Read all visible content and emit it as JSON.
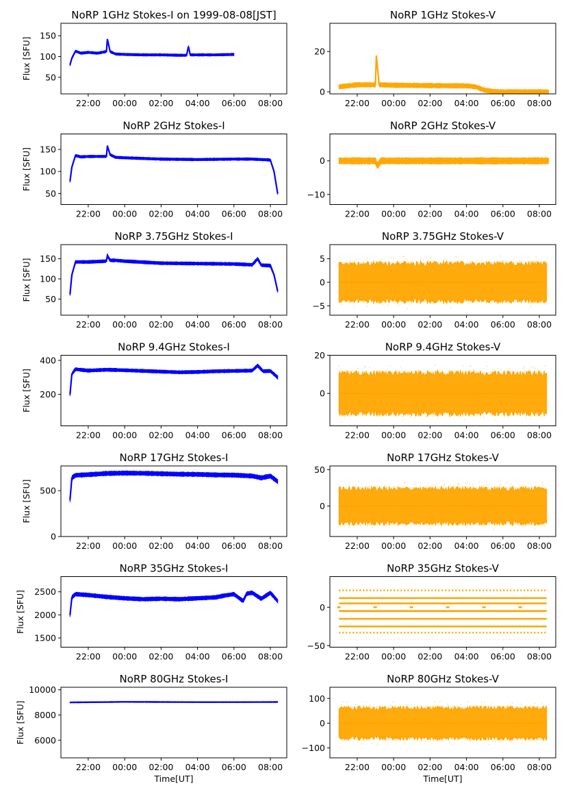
{
  "figure": {
    "xlabel": "Time[UT]",
    "time_ticks": [
      "22:00",
      "00:00",
      "02:00",
      "04:00",
      "06:00",
      "08:00"
    ],
    "colors": {
      "stokes_i": "#0000ff",
      "stokes_v": "#ffa500",
      "axis": "#000000"
    }
  },
  "chart_data": [
    {
      "type": "line",
      "title": "NoRP 1GHz Stokes-I on 1999-08-08[JST]",
      "ylabel": "Flux [SFU]",
      "xlabel": "",
      "color": "#0000ff",
      "xlim": [
        20.5,
        32.9
      ],
      "ylim": [
        10,
        180
      ],
      "yticks": [
        50,
        100,
        150
      ],
      "ytick_labels": [
        "50",
        "100",
        "150"
      ],
      "x": [
        21.0,
        21.1,
        21.3,
        21.6,
        22.0,
        22.5,
        23.0,
        23.05,
        23.2,
        23.5,
        24.0,
        25.0,
        26.0,
        27.0,
        27.4,
        27.5,
        27.6,
        28.0,
        29.0,
        30.0
      ],
      "values": [
        80,
        96,
        113,
        108,
        110,
        108,
        112,
        142,
        112,
        106,
        105,
        104,
        104,
        103,
        103,
        124,
        104,
        104,
        104,
        105
      ],
      "band": 3
    },
    {
      "type": "line",
      "title": "NoRP 1GHz Stokes-V",
      "ylabel": "",
      "xlabel": "",
      "color": "#ffa500",
      "xlim": [
        20.5,
        32.9
      ],
      "ylim": [
        -1,
        34
      ],
      "yticks": [
        0,
        20
      ],
      "ytick_labels": [
        "0",
        "20"
      ],
      "x": [
        21.0,
        22.0,
        23.0,
        23.05,
        23.2,
        24.0,
        26.0,
        28.0,
        28.5,
        29.0,
        29.5,
        30.0,
        32.5
      ],
      "values": [
        2.5,
        3.5,
        3.5,
        18,
        3.5,
        3.3,
        3.1,
        3.0,
        2.5,
        0.8,
        0.2,
        0,
        0
      ],
      "band": 1.2
    },
    {
      "type": "line",
      "title": "NoRP 2GHz Stokes-I",
      "ylabel": "Flux [SFU]",
      "xlabel": "",
      "color": "#0000ff",
      "xlim": [
        20.5,
        32.9
      ],
      "ylim": [
        25,
        185
      ],
      "yticks": [
        50,
        100,
        150
      ],
      "ytick_labels": [
        "50",
        "100",
        "150"
      ],
      "x": [
        21.0,
        21.1,
        21.3,
        21.6,
        22.0,
        23.0,
        23.05,
        23.2,
        23.5,
        24.0,
        26.0,
        28.0,
        30.0,
        31.0,
        31.5,
        32.0,
        32.2,
        32.4
      ],
      "values": [
        78,
        110,
        136,
        133,
        134,
        134,
        158,
        138,
        132,
        131,
        128,
        127,
        128,
        128,
        127,
        126,
        100,
        50
      ],
      "band": 3
    },
    {
      "type": "line",
      "title": "NoRP 2GHz Stokes-V",
      "ylabel": "",
      "xlabel": "",
      "color": "#ffa500",
      "xlim": [
        20.5,
        32.9
      ],
      "ylim": [
        -13,
        8
      ],
      "yticks": [
        -10,
        0
      ],
      "ytick_labels": [
        "−10",
        "0"
      ],
      "x": [
        21.0,
        23.0,
        23.1,
        23.3,
        25.0,
        27.0,
        29.0,
        31.0,
        32.5
      ],
      "values": [
        0,
        0,
        -1.5,
        0,
        0,
        0,
        0,
        0,
        0
      ],
      "band": 1.0
    },
    {
      "type": "line",
      "title": "NoRP 3.75GHz Stokes-I",
      "ylabel": "Flux [SFU]",
      "xlabel": "",
      "color": "#0000ff",
      "xlim": [
        20.5,
        32.9
      ],
      "ylim": [
        10,
        185
      ],
      "yticks": [
        50,
        100,
        150
      ],
      "ytick_labels": [
        "50",
        "100",
        "150"
      ],
      "x": [
        21.0,
        21.1,
        21.3,
        21.6,
        22.0,
        23.0,
        23.05,
        23.2,
        23.5,
        24.0,
        26.0,
        28.0,
        30.0,
        31.0,
        31.3,
        31.5,
        32.0,
        32.2,
        32.4
      ],
      "values": [
        62,
        110,
        142,
        142,
        142,
        144,
        158,
        146,
        146,
        144,
        139,
        138,
        137,
        135,
        150,
        134,
        133,
        110,
        70
      ],
      "band": 4
    },
    {
      "type": "line",
      "title": "NoRP 3.75GHz Stokes-V",
      "ylabel": "",
      "xlabel": "",
      "color": "#ffa500",
      "xlim": [
        20.5,
        32.9
      ],
      "ylim": [
        -7,
        8
      ],
      "yticks": [
        -5,
        0,
        5
      ],
      "ytick_labels": [
        "−5",
        "0",
        "5"
      ],
      "x": [
        21.0,
        32.4
      ],
      "values": [
        0,
        0
      ],
      "band": 4.5
    },
    {
      "type": "line",
      "title": "NoRP 9.4GHz Stokes-I",
      "ylabel": "Flux [SFU]",
      "xlabel": "",
      "color": "#0000ff",
      "xlim": [
        20.5,
        32.9
      ],
      "ylim": [
        15,
        430
      ],
      "yticks": [
        200,
        400
      ],
      "ytick_labels": [
        "200",
        "400"
      ],
      "x": [
        21.0,
        21.1,
        21.3,
        22.0,
        23.0,
        24.0,
        25.0,
        26.0,
        27.0,
        28.0,
        29.0,
        30.0,
        31.0,
        31.3,
        31.6,
        32.0,
        32.4
      ],
      "values": [
        200,
        320,
        348,
        340,
        345,
        342,
        338,
        334,
        330,
        332,
        336,
        338,
        340,
        370,
        336,
        338,
        300
      ],
      "band": 10
    },
    {
      "type": "line",
      "title": "NoRP 9.4GHz Stokes-V",
      "ylabel": "",
      "xlabel": "",
      "color": "#ffa500",
      "xlim": [
        20.5,
        32.9
      ],
      "ylim": [
        -17,
        20
      ],
      "yticks": [
        0,
        20
      ],
      "ytick_labels": [
        "0",
        "20"
      ],
      "x": [
        21.0,
        32.4
      ],
      "values": [
        0,
        0
      ],
      "band": 12
    },
    {
      "type": "line",
      "title": "NoRP 17GHz Stokes-I",
      "ylabel": "Flux [SFU]",
      "xlabel": "",
      "color": "#0000ff",
      "xlim": [
        20.5,
        32.9
      ],
      "ylim": [
        0,
        770
      ],
      "yticks": [
        0,
        500
      ],
      "ytick_labels": [
        "0",
        "500"
      ],
      "x": [
        21.0,
        21.1,
        21.3,
        22.0,
        23.0,
        24.0,
        25.0,
        26.0,
        27.0,
        28.0,
        29.0,
        30.0,
        31.0,
        31.5,
        32.0,
        32.4
      ],
      "values": [
        400,
        640,
        668,
        675,
        688,
        692,
        690,
        685,
        680,
        678,
        672,
        670,
        660,
        640,
        660,
        600
      ],
      "band": 25
    },
    {
      "type": "line",
      "title": "NoRP 17GHz Stokes-V",
      "ylabel": "",
      "xlabel": "",
      "color": "#ffa500",
      "xlim": [
        20.5,
        32.9
      ],
      "ylim": [
        -42,
        55
      ],
      "yticks": [
        0,
        50
      ],
      "ytick_labels": [
        "0",
        "50"
      ],
      "x": [
        21.0,
        32.4
      ],
      "values": [
        0,
        0
      ],
      "band": 27
    },
    {
      "type": "line",
      "title": "NoRP 35GHz Stokes-I",
      "ylabel": "Flux [SFU]",
      "xlabel": "",
      "color": "#0000ff",
      "xlim": [
        20.5,
        32.9
      ],
      "ylim": [
        1300,
        2830
      ],
      "yticks": [
        1500,
        2000,
        2500
      ],
      "ytick_labels": [
        "1500",
        "2000",
        "2500"
      ],
      "x": [
        21.0,
        21.1,
        21.3,
        22.0,
        23.0,
        24.0,
        25.0,
        26.0,
        27.0,
        28.0,
        29.0,
        29.5,
        30.0,
        30.5,
        30.7,
        31.0,
        31.5,
        32.0,
        32.4
      ],
      "values": [
        2000,
        2380,
        2450,
        2430,
        2390,
        2360,
        2340,
        2350,
        2340,
        2360,
        2380,
        2420,
        2450,
        2300,
        2460,
        2480,
        2350,
        2480,
        2300
      ],
      "band": 45
    },
    {
      "type": "line",
      "title": "NoRP 35GHz Stokes-V",
      "ylabel": "",
      "xlabel": "",
      "color": "#ffa500",
      "xlim": [
        20.5,
        32.9
      ],
      "ylim": [
        -52,
        40
      ],
      "yticks": [
        -50,
        0
      ],
      "ytick_labels": [
        "−50",
        "0"
      ],
      "x": [
        21.0,
        32.4
      ],
      "values": [
        0,
        0
      ],
      "levels": [
        22,
        12,
        5,
        -5,
        -15,
        -25,
        -33
      ]
    },
    {
      "type": "line",
      "title": "NoRP 80GHz Stokes-I",
      "ylabel": "Flux [SFU]",
      "xlabel": "Time[UT]",
      "color": "#0000ff",
      "xlim": [
        20.5,
        32.9
      ],
      "ylim": [
        4600,
        10200
      ],
      "yticks": [
        6000,
        8000,
        10000
      ],
      "ytick_labels": [
        "6000",
        "8000",
        "10000"
      ],
      "x": [
        21.0,
        22.0,
        24.0,
        26.0,
        28.0,
        30.0,
        32.4
      ],
      "values": [
        9000,
        9010,
        9040,
        9030,
        9020,
        9020,
        9030
      ],
      "band": 40
    },
    {
      "type": "line",
      "title": "NoRP 80GHz Stokes-V",
      "ylabel": "",
      "xlabel": "Time[UT]",
      "color": "#ffa500",
      "xlim": [
        20.5,
        32.9
      ],
      "ylim": [
        -140,
        145
      ],
      "yticks": [
        -100,
        0,
        100
      ],
      "ytick_labels": [
        "−100",
        "0",
        "100"
      ],
      "x": [
        21.0,
        32.4
      ],
      "values": [
        0,
        0
      ],
      "band": 70
    }
  ]
}
